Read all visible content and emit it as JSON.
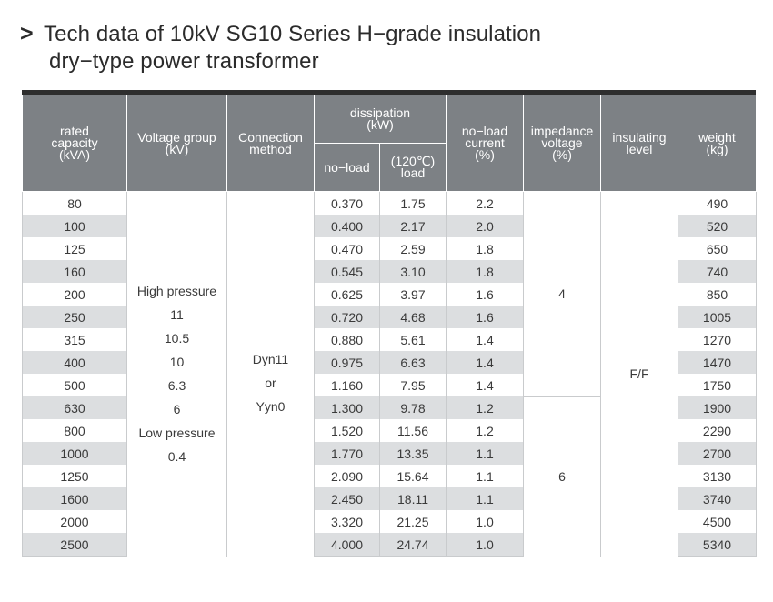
{
  "title": {
    "prefix": ">",
    "line1": "Tech data of 10kV SG10 Series H−grade insulation",
    "line2": "dry−type power transformer"
  },
  "headers": {
    "rated_capacity": [
      "rated",
      "capacity",
      "(kVA)"
    ],
    "voltage_group": [
      "Voltage group",
      "(kV)"
    ],
    "connection_method": [
      "Connection",
      "method"
    ],
    "dissipation": [
      "dissipation",
      "(kW)"
    ],
    "dissipation_noload": "no−load",
    "dissipation_load": [
      "(120℃)",
      "load"
    ],
    "noload_current": [
      "no−load",
      "current",
      "(%)"
    ],
    "impedance_voltage": [
      "impedance",
      "voltage",
      "(%)"
    ],
    "insulating_level": [
      "insulating",
      "level"
    ],
    "weight": [
      "weight",
      "(kg)"
    ]
  },
  "voltage_group_text": [
    "High pressure",
    "11",
    "10.5",
    "10",
    "6.3",
    "6",
    "Low pressure",
    "0.4"
  ],
  "connection_text": [
    "Dyn11",
    "or",
    "Yyn0"
  ],
  "impedance_values": [
    "4",
    "6"
  ],
  "insulating_value": "F/F",
  "rows": [
    {
      "capacity": "80",
      "noload": "0.370",
      "load": "1.75",
      "current": "2.2",
      "weight": "490"
    },
    {
      "capacity": "100",
      "noload": "0.400",
      "load": "2.17",
      "current": "2.0",
      "weight": "520"
    },
    {
      "capacity": "125",
      "noload": "0.470",
      "load": "2.59",
      "current": "1.8",
      "weight": "650"
    },
    {
      "capacity": "160",
      "noload": "0.545",
      "load": "3.10",
      "current": "1.8",
      "weight": "740"
    },
    {
      "capacity": "200",
      "noload": "0.625",
      "load": "3.97",
      "current": "1.6",
      "weight": "850"
    },
    {
      "capacity": "250",
      "noload": "0.720",
      "load": "4.68",
      "current": "1.6",
      "weight": "1005"
    },
    {
      "capacity": "315",
      "noload": "0.880",
      "load": "5.61",
      "current": "1.4",
      "weight": "1270"
    },
    {
      "capacity": "400",
      "noload": "0.975",
      "load": "6.63",
      "current": "1.4",
      "weight": "1470"
    },
    {
      "capacity": "500",
      "noload": "1.160",
      "load": "7.95",
      "current": "1.4",
      "weight": "1750"
    },
    {
      "capacity": "630",
      "noload": "1.300",
      "load": "9.78",
      "current": "1.2",
      "weight": "1900"
    },
    {
      "capacity": "800",
      "noload": "1.520",
      "load": "11.56",
      "current": "1.2",
      "weight": "2290"
    },
    {
      "capacity": "1000",
      "noload": "1.770",
      "load": "13.35",
      "current": "1.1",
      "weight": "2700"
    },
    {
      "capacity": "1250",
      "noload": "2.090",
      "load": "15.64",
      "current": "1.1",
      "weight": "3130"
    },
    {
      "capacity": "1600",
      "noload": "2.450",
      "load": "18.11",
      "current": "1.1",
      "weight": "3740"
    },
    {
      "capacity": "2000",
      "noload": "3.320",
      "load": "21.25",
      "current": "1.0",
      "weight": "4500"
    },
    {
      "capacity": "2500",
      "noload": "4.000",
      "load": "24.74",
      "current": "1.0",
      "weight": "5340"
    }
  ],
  "colors": {
    "header_bg": "#7d8185",
    "stripe_bg": "#dcdee0",
    "top_bar": "#2e2e2e"
  }
}
